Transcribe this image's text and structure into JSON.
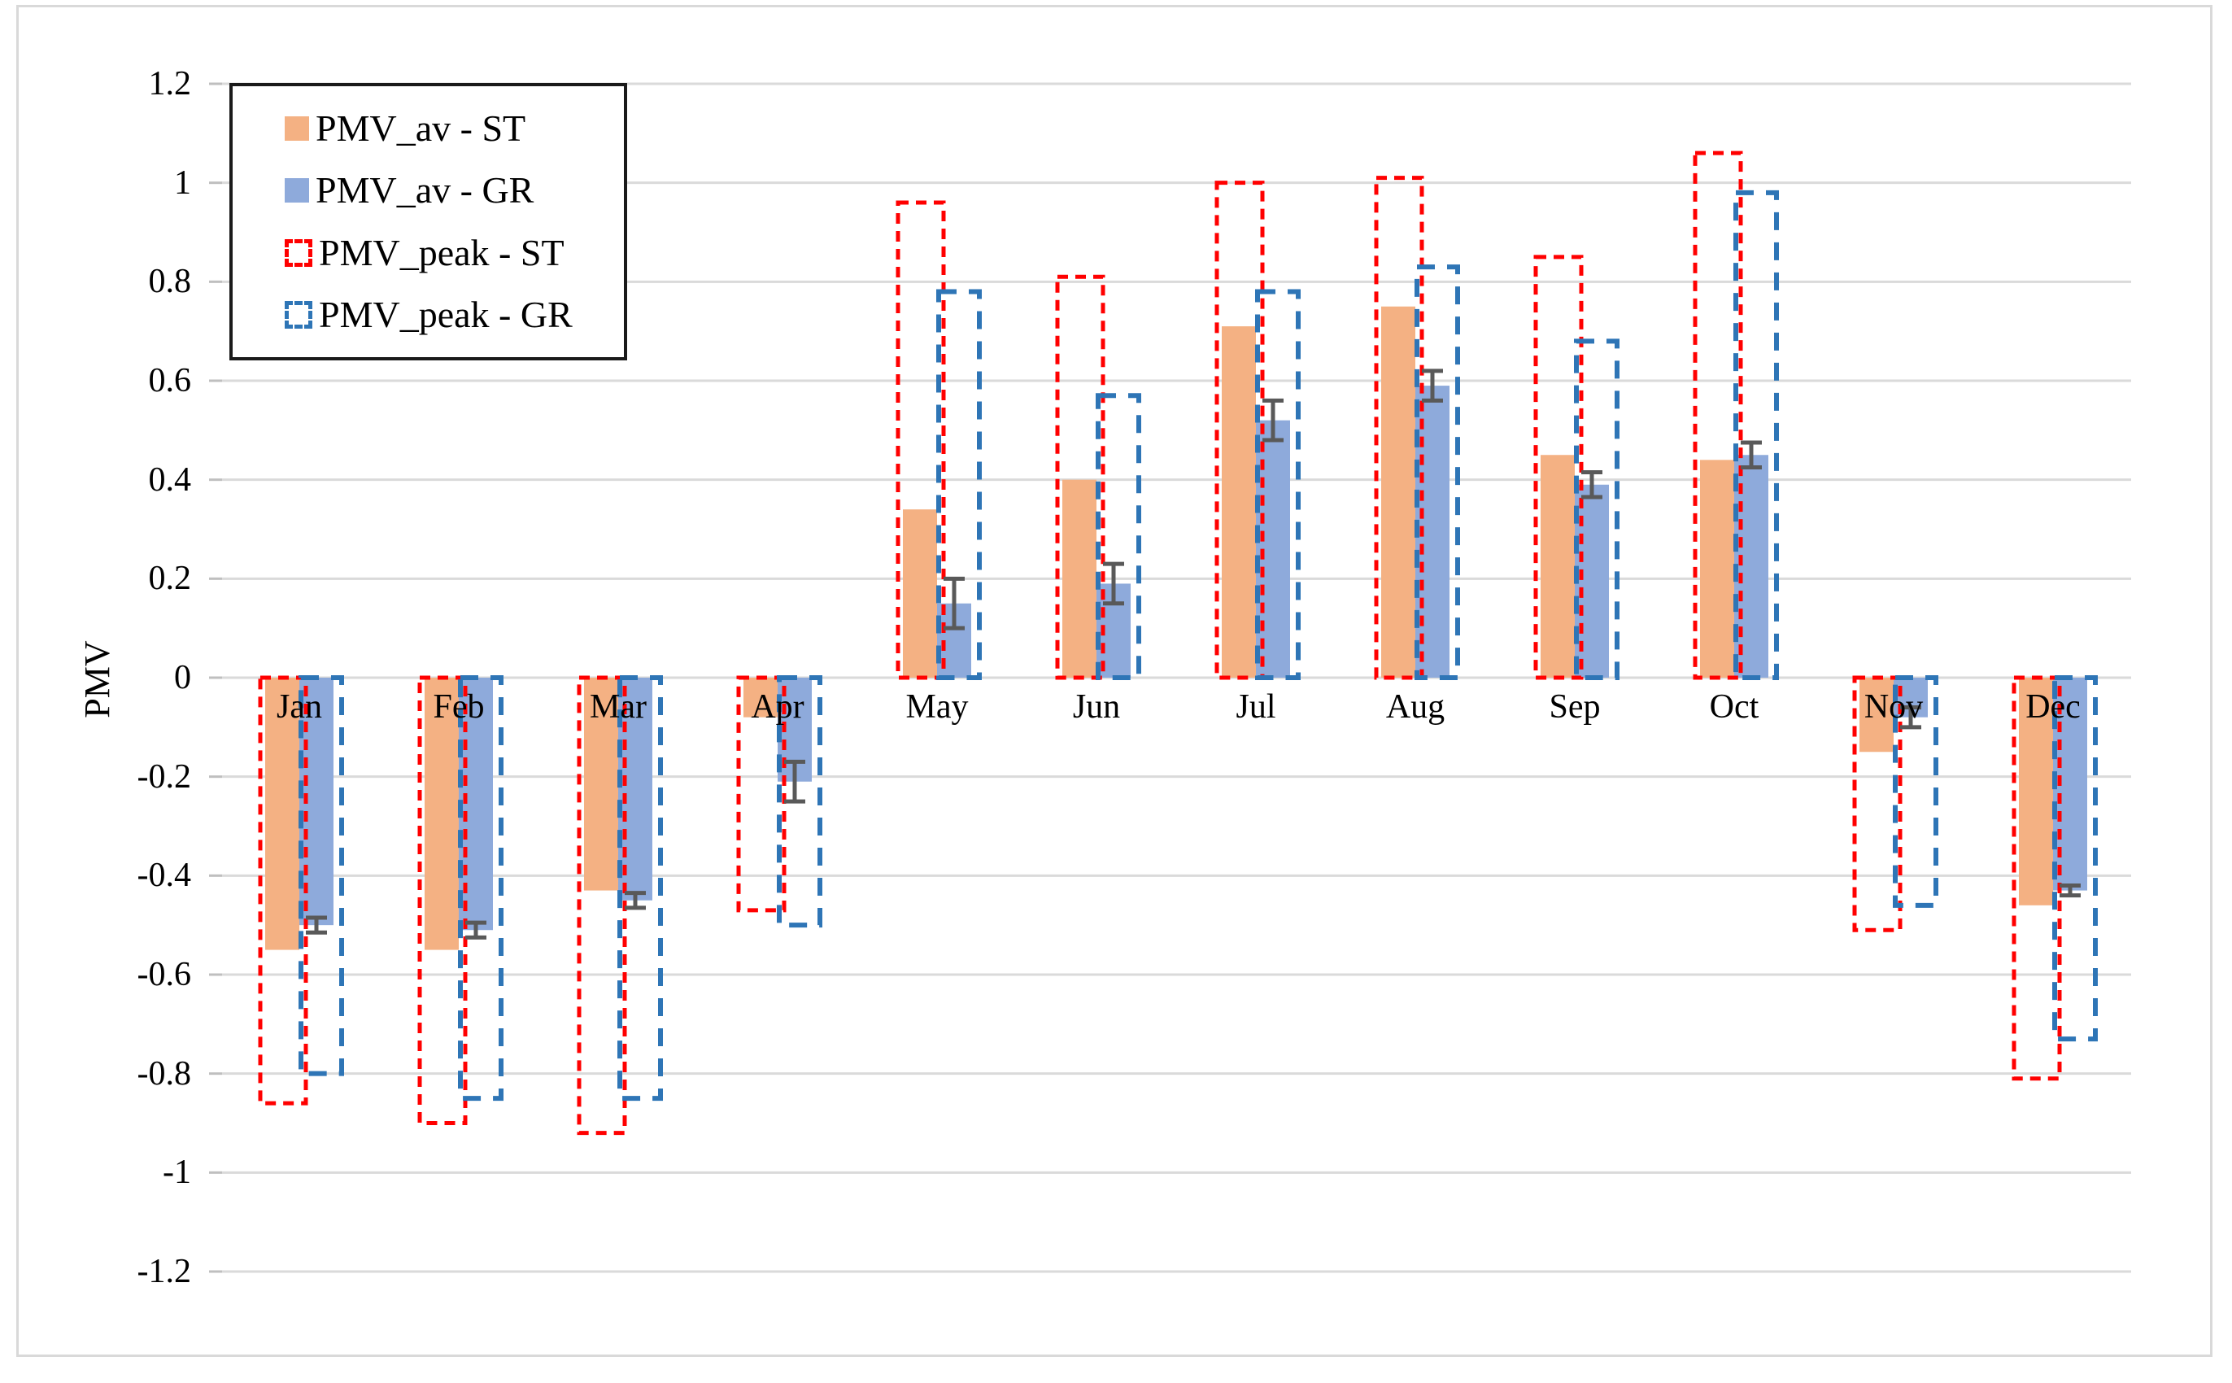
{
  "axis": {
    "y_title": "PMV"
  },
  "chart_data": {
    "type": "bar",
    "title": "",
    "xlabel": "",
    "ylabel": "PMV",
    "categories": [
      "Jan",
      "Feb",
      "Mar",
      "Apr",
      "May",
      "Jun",
      "Jul",
      "Aug",
      "Sep",
      "Oct",
      "Nov",
      "Dec"
    ],
    "ylim": [
      -1.2,
      1.2
    ],
    "ytick_labels": [
      "1.2",
      "1",
      "0.8",
      "0.6",
      "0.4",
      "0.2",
      "0",
      "-0.2",
      "-0.4",
      "-0.6",
      "-0.8",
      "-1",
      "-1.2"
    ],
    "grid": true,
    "legend_position": "top-left",
    "series": [
      {
        "name": "PMV_av - ST",
        "type": "solid-bar",
        "color": "#F4B183",
        "values": [
          -0.55,
          -0.55,
          -0.43,
          -0.08,
          0.34,
          0.4,
          0.71,
          0.75,
          0.45,
          0.44,
          -0.15,
          -0.46
        ]
      },
      {
        "name": "PMV_av - GR",
        "type": "solid-bar",
        "color": "#8EAADB",
        "values": [
          -0.5,
          -0.51,
          -0.45,
          -0.21,
          0.15,
          0.19,
          0.52,
          0.59,
          0.39,
          0.45,
          -0.08,
          -0.43
        ],
        "error": [
          0.015,
          0.015,
          0.015,
          0.04,
          0.05,
          0.04,
          0.04,
          0.03,
          0.025,
          0.025,
          0.02,
          0.01
        ]
      },
      {
        "name": "PMV_peak - ST",
        "type": "dashed-outline-bar",
        "color": "#FF0000",
        "values": [
          -0.86,
          -0.9,
          -0.92,
          -0.47,
          0.96,
          0.81,
          1.0,
          1.01,
          0.85,
          1.06,
          -0.51,
          -0.81
        ]
      },
      {
        "name": "PMV_peak - GR",
        "type": "dashed-outline-bar",
        "color": "#2E75B6",
        "values": [
          -0.8,
          -0.85,
          -0.85,
          -0.5,
          0.78,
          0.57,
          0.78,
          0.83,
          0.68,
          0.98,
          -0.46,
          -0.73
        ]
      }
    ],
    "error_bar_color": "#595959",
    "gridline_color": "#DADADA",
    "tick_mark_color": "#BFBFBF"
  }
}
